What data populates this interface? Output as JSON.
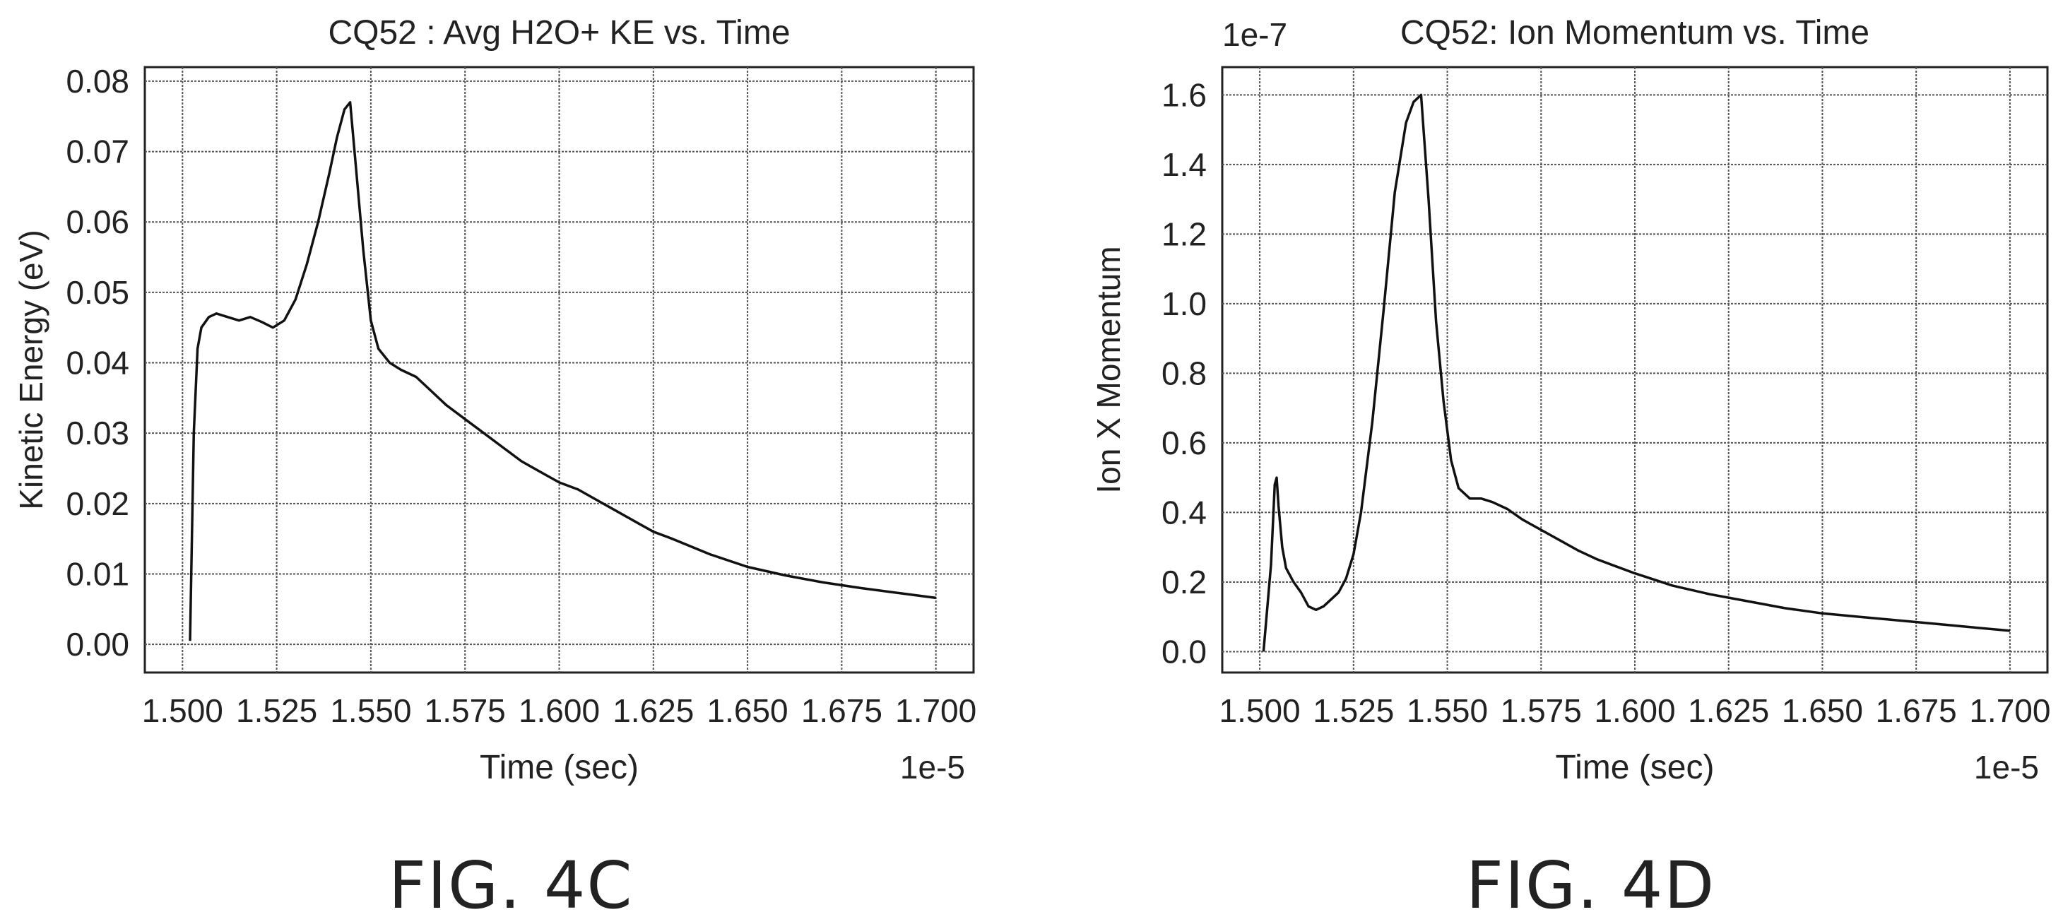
{
  "chart_data": [
    {
      "type": "line",
      "title": "CQ52 : Avg H2O+ KE vs. Time",
      "xlabel": "Time (sec)",
      "ylabel": "Kinetic Energy (eV)",
      "x_multiplier": "1e-5",
      "y_multiplier": "",
      "xlim": [
        1.49,
        1.71
      ],
      "ylim": [
        -0.004,
        0.082
      ],
      "x_ticks": [
        "1.500",
        "1.525",
        "1.550",
        "1.575",
        "1.600",
        "1.625",
        "1.650",
        "1.675",
        "1.700"
      ],
      "y_ticks": [
        "0.00",
        "0.01",
        "0.02",
        "0.03",
        "0.04",
        "0.05",
        "0.06",
        "0.07",
        "0.08"
      ],
      "grid": true,
      "series": [
        {
          "x": [
            1.502,
            1.503,
            1.504,
            1.505,
            1.507,
            1.509,
            1.512,
            1.515,
            1.518,
            1.521,
            1.524,
            1.527,
            1.53,
            1.533,
            1.536,
            1.539,
            1.541,
            1.543,
            1.5445,
            1.546,
            1.548,
            1.55,
            1.552,
            1.555,
            1.558,
            1.562,
            1.565,
            1.57,
            1.575,
            1.58,
            1.585,
            1.59,
            1.595,
            1.6,
            1.605,
            1.61,
            1.615,
            1.62,
            1.625,
            1.63,
            1.64,
            1.65,
            1.66,
            1.67,
            1.68,
            1.69,
            1.7
          ],
          "y": [
            0.0005,
            0.03,
            0.042,
            0.045,
            0.0465,
            0.047,
            0.0465,
            0.046,
            0.0465,
            0.0458,
            0.045,
            0.046,
            0.049,
            0.054,
            0.06,
            0.067,
            0.072,
            0.076,
            0.077,
            0.068,
            0.056,
            0.046,
            0.042,
            0.04,
            0.039,
            0.038,
            0.0365,
            0.034,
            0.032,
            0.03,
            0.028,
            0.026,
            0.0245,
            0.023,
            0.022,
            0.0205,
            0.019,
            0.0175,
            0.016,
            0.015,
            0.0128,
            0.011,
            0.0098,
            0.0088,
            0.008,
            0.0073,
            0.0066
          ]
        }
      ]
    },
    {
      "type": "line",
      "title": "CQ52: Ion Momentum vs. Time",
      "xlabel": "Time (sec)",
      "ylabel": "Ion X Momentum",
      "x_multiplier": "1e-5",
      "y_multiplier": "1e-7",
      "xlim": [
        1.49,
        1.71
      ],
      "ylim": [
        -0.06,
        1.68
      ],
      "x_ticks": [
        "1.500",
        "1.525",
        "1.550",
        "1.575",
        "1.600",
        "1.625",
        "1.650",
        "1.675",
        "1.700"
      ],
      "y_ticks": [
        "0.0",
        "0.2",
        "0.4",
        "0.6",
        "0.8",
        "1.0",
        "1.2",
        "1.4",
        "1.6"
      ],
      "grid": true,
      "series": [
        {
          "x": [
            1.501,
            1.503,
            1.504,
            1.5045,
            1.505,
            1.506,
            1.507,
            1.509,
            1.511,
            1.513,
            1.515,
            1.517,
            1.519,
            1.521,
            1.523,
            1.525,
            1.527,
            1.53,
            1.533,
            1.536,
            1.539,
            1.541,
            1.543,
            1.545,
            1.547,
            1.549,
            1.551,
            1.553,
            1.556,
            1.559,
            1.562,
            1.566,
            1.57,
            1.575,
            1.58,
            1.585,
            1.59,
            1.595,
            1.6,
            1.61,
            1.62,
            1.63,
            1.64,
            1.65,
            1.66,
            1.67,
            1.68,
            1.69,
            1.7
          ],
          "y": [
            0.0,
            0.25,
            0.48,
            0.5,
            0.42,
            0.3,
            0.24,
            0.2,
            0.17,
            0.13,
            0.12,
            0.13,
            0.15,
            0.17,
            0.21,
            0.28,
            0.4,
            0.66,
            0.98,
            1.32,
            1.52,
            1.58,
            1.6,
            1.3,
            0.95,
            0.72,
            0.55,
            0.47,
            0.44,
            0.44,
            0.43,
            0.41,
            0.38,
            0.35,
            0.32,
            0.29,
            0.265,
            0.245,
            0.225,
            0.19,
            0.165,
            0.145,
            0.125,
            0.11,
            0.1,
            0.09,
            0.08,
            0.07,
            0.06
          ]
        }
      ]
    }
  ],
  "captions": [
    "FIG. 4C",
    "FIG. 4D"
  ]
}
